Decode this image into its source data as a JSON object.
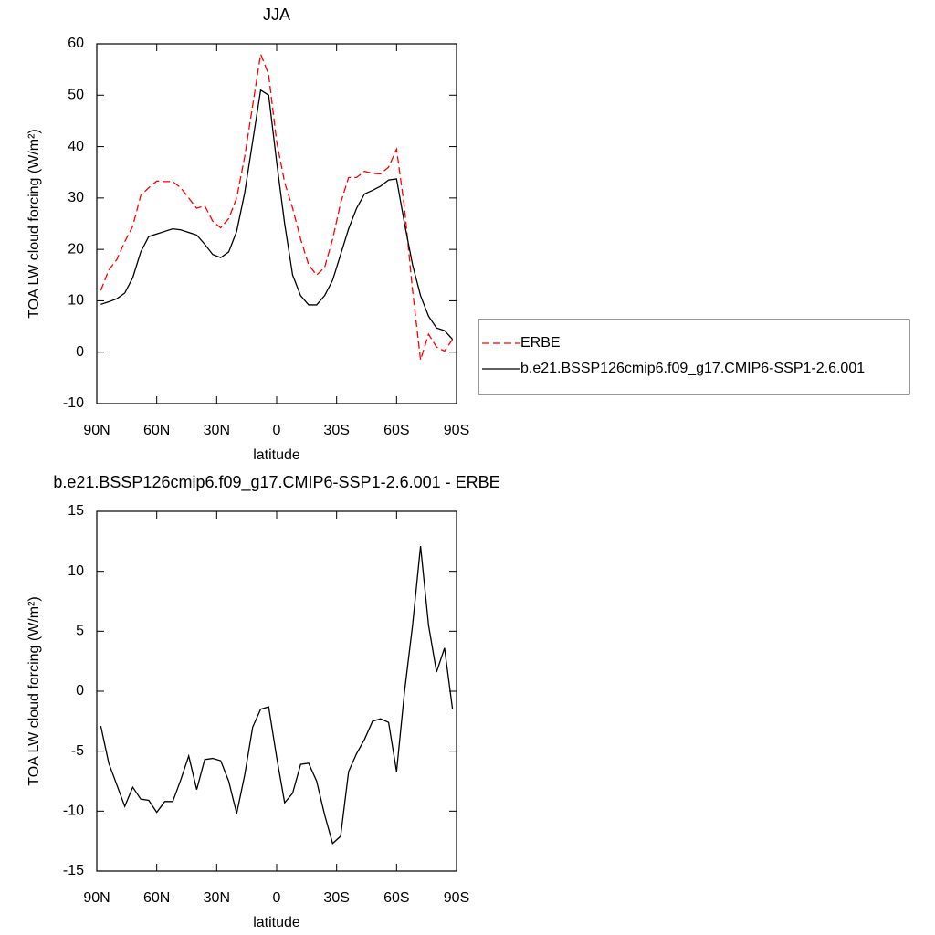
{
  "chart_data": [
    {
      "type": "line",
      "title": "JJA",
      "xlabel": "latitude",
      "ylabel": "TOA LW cloud forcing (W/m²)",
      "x": [
        88,
        84,
        80,
        76,
        72,
        68,
        64,
        60,
        56,
        52,
        48,
        44,
        40,
        36,
        32,
        28,
        24,
        20,
        16,
        12,
        8,
        4,
        0,
        -4,
        -8,
        -12,
        -16,
        -20,
        -24,
        -28,
        -32,
        -36,
        -40,
        -44,
        -48,
        -52,
        -56,
        -60,
        -64,
        -68,
        -72,
        -76,
        -80,
        -84,
        -88
      ],
      "xlim": [
        90,
        -90
      ],
      "xticks": [
        {
          "value": 90,
          "label": "90N"
        },
        {
          "value": 60,
          "label": "60N"
        },
        {
          "value": 30,
          "label": "30N"
        },
        0,
        {
          "value": -30,
          "label": "30S"
        },
        {
          "value": -60,
          "label": "60S"
        },
        {
          "value": -90,
          "label": "90S"
        }
      ],
      "ylim": [
        -10,
        60
      ],
      "yticks": [
        -10,
        0,
        10,
        20,
        30,
        40,
        50,
        60
      ],
      "legend": "right",
      "series": [
        {
          "name": "ERBE",
          "color": "#ff0000",
          "dashed": true,
          "values": [
            12,
            16,
            18,
            21.5,
            24.5,
            30.5,
            32,
            33.3,
            33.2,
            33.2,
            32,
            30,
            28,
            28.5,
            25.5,
            24.2,
            26,
            30,
            38,
            48,
            58,
            54,
            41,
            33,
            28,
            22,
            17,
            15,
            16.5,
            22,
            29,
            34,
            34,
            35.2,
            34.8,
            34.7,
            36,
            39.5,
            28,
            12,
            -1.5,
            3.5,
            1,
            0.2,
            2.5
          ]
        },
        {
          "name": "b.e21.BSSP126cmip6.f09_g17.CMIP6-SSP1-2.6.001",
          "color": "#000000",
          "dashed": false,
          "values": [
            9.3,
            9.8,
            10.4,
            11.5,
            14.5,
            19.5,
            22.5,
            23,
            23.5,
            24,
            23.8,
            23.3,
            22.8,
            21,
            19,
            18.4,
            19.5,
            23.5,
            31,
            41,
            51,
            50,
            37,
            25,
            15,
            11,
            9.2,
            9.2,
            11,
            14,
            19,
            24,
            28,
            30.8,
            31.5,
            32.3,
            33.5,
            33.7,
            25,
            17,
            11,
            7,
            4.7,
            4.2,
            2.5
          ]
        }
      ]
    },
    {
      "type": "line",
      "title": "b.e21.BSSP126cmip6.f09_g17.CMIP6-SSP1-2.6.001 - ERBE",
      "xlabel": "latitude",
      "ylabel": "TOA LW cloud forcing (W/m²)",
      "x": [
        88,
        84,
        80,
        76,
        72,
        68,
        64,
        60,
        56,
        52,
        48,
        44,
        40,
        36,
        32,
        28,
        24,
        20,
        16,
        12,
        8,
        4,
        0,
        -4,
        -8,
        -12,
        -16,
        -20,
        -24,
        -28,
        -32,
        -36,
        -40,
        -44,
        -48,
        -52,
        -56,
        -60,
        -64,
        -68,
        -72,
        -76,
        -80,
        -84,
        -88
      ],
      "xlim": [
        90,
        -90
      ],
      "xticks": [
        {
          "value": 90,
          "label": "90N"
        },
        {
          "value": 60,
          "label": "60N"
        },
        {
          "value": 30,
          "label": "30N"
        },
        0,
        {
          "value": -30,
          "label": "30S"
        },
        {
          "value": -60,
          "label": "60S"
        },
        {
          "value": -90,
          "label": "90S"
        }
      ],
      "ylim": [
        -15,
        15
      ],
      "yticks": [
        -15,
        -10,
        -5,
        0,
        5,
        10,
        15
      ],
      "color": "#000000",
      "values": [
        -2.9,
        -6,
        -7.8,
        -9.6,
        -8,
        -9,
        -9.1,
        -10.1,
        -9.2,
        -9.2,
        -7.4,
        -5.4,
        -8.2,
        -5.7,
        -5.6,
        -5.8,
        -7.5,
        -10.2,
        -7,
        -3,
        -1.5,
        -1.3,
        -5.5,
        -9.3,
        -8.5,
        -6.1,
        -6,
        -7.5,
        -10.3,
        -12.7,
        -12.1,
        -6.7,
        -5.2,
        -4,
        -2.5,
        -2.3,
        -2.6,
        -6.7,
        0,
        5.5,
        12.1,
        5.5,
        1.6,
        3.6,
        -1.5
      ]
    }
  ]
}
